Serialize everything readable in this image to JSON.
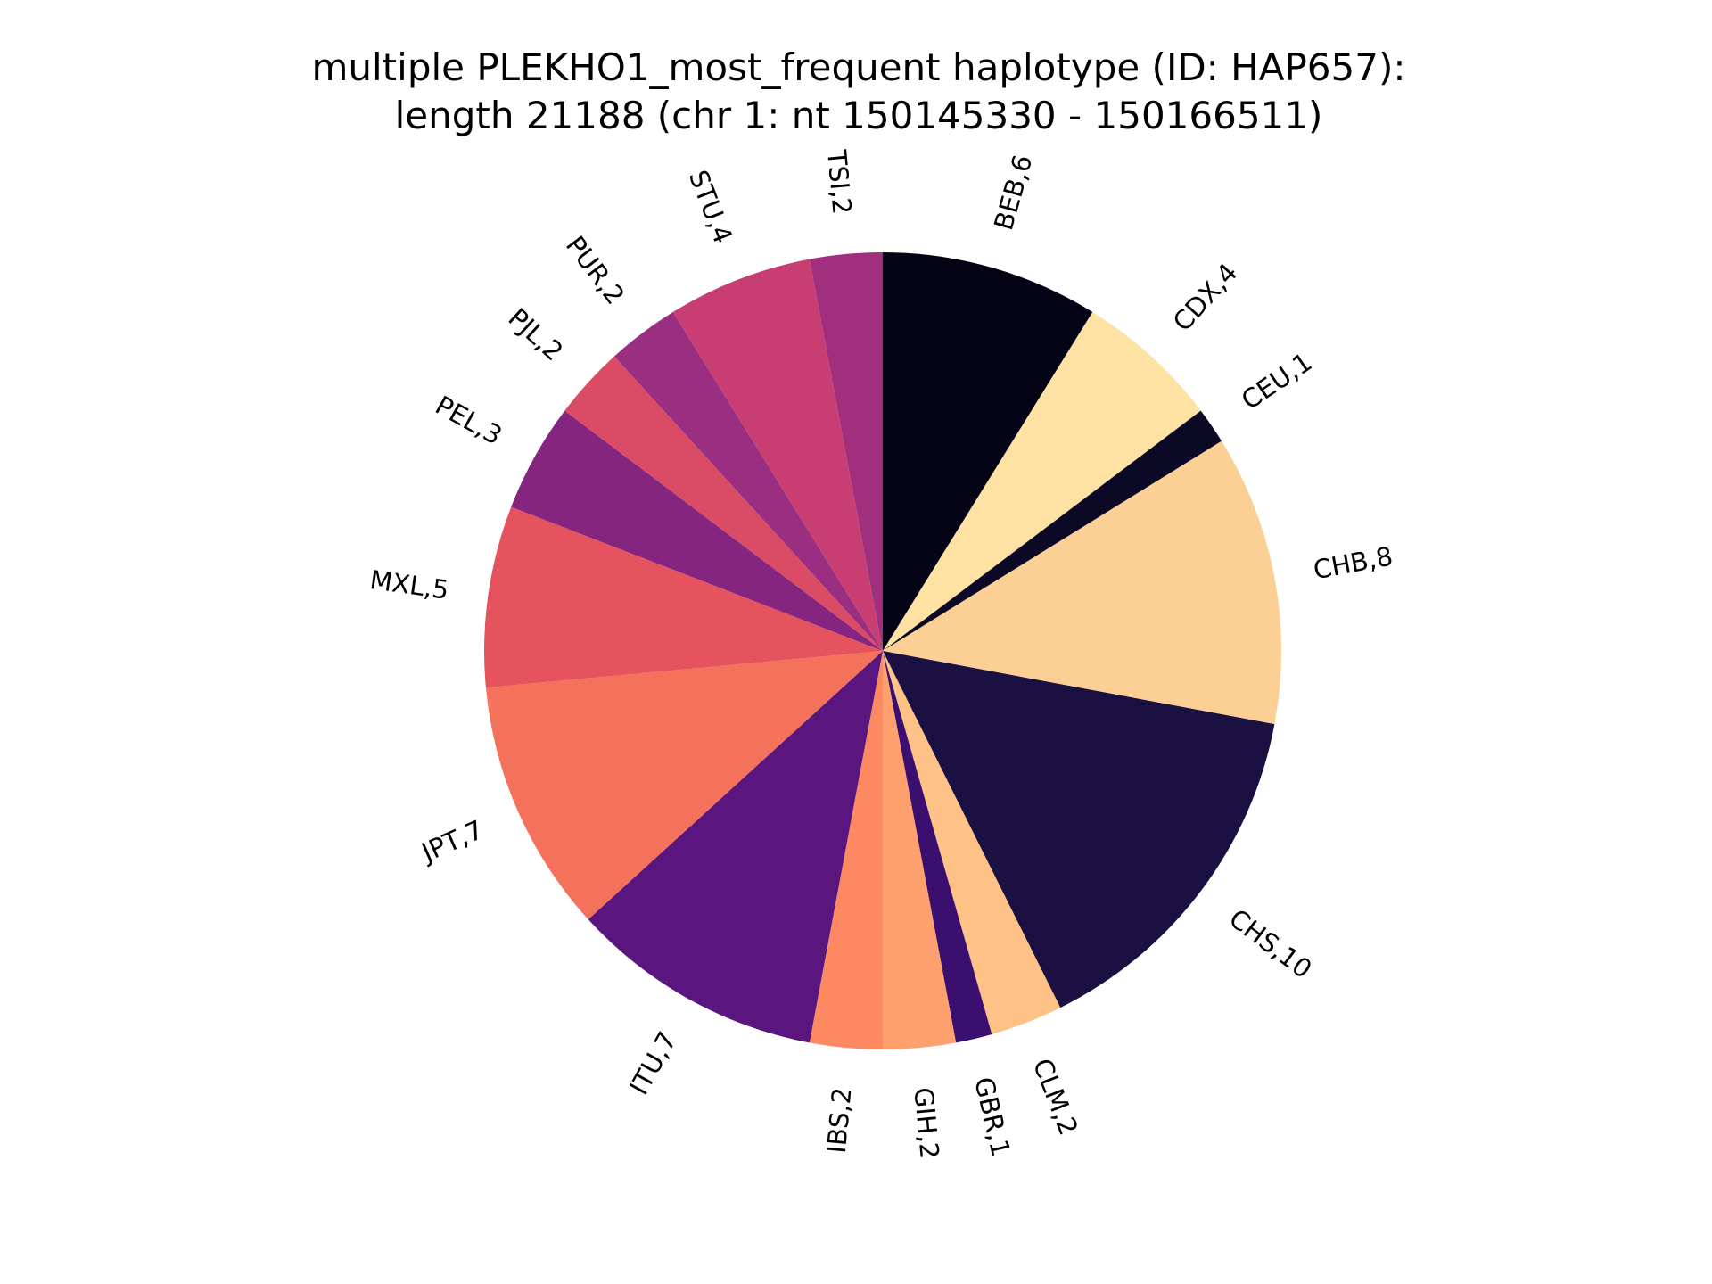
{
  "chart_data": {
    "type": "pie",
    "title": "multiple PLEKHO1_most_frequent haplotype (ID: HAP657):",
    "subtitle": "length 21188 (chr 1: nt 150145330 - 150166511)",
    "slices": [
      {
        "label": "BEB",
        "value": 6,
        "color": "#050416"
      },
      {
        "label": "CDX",
        "value": 4,
        "color": "#fde2a3"
      },
      {
        "label": "CEU",
        "value": 1,
        "color": "#0c0926"
      },
      {
        "label": "CHB",
        "value": 8,
        "color": "#fcd095"
      },
      {
        "label": "CHS",
        "value": 10,
        "color": "#1a1042"
      },
      {
        "label": "CLM",
        "value": 2,
        "color": "#fec287"
      },
      {
        "label": "GBR",
        "value": 1,
        "color": "#3b0f70"
      },
      {
        "label": "GIH",
        "value": 2,
        "color": "#fea16e"
      },
      {
        "label": "IBS",
        "value": 2,
        "color": "#fc8961"
      },
      {
        "label": "ITU",
        "value": 7,
        "color": "#5a167e"
      },
      {
        "label": "JPT",
        "value": 7,
        "color": "#f4725c"
      },
      {
        "label": "MXL",
        "value": 5,
        "color": "#e4535e"
      },
      {
        "label": "PEL",
        "value": 3,
        "color": "#852580"
      },
      {
        "label": "PJL",
        "value": 2,
        "color": "#da4b66"
      },
      {
        "label": "PUR",
        "value": 2,
        "color": "#9a2e80"
      },
      {
        "label": "STU",
        "value": 4,
        "color": "#c83e73"
      },
      {
        "label": "TSI",
        "value": 2,
        "color": "#a0307e"
      }
    ],
    "start_angle_deg": 90,
    "direction": "clockwise",
    "label_format": "{label},{value}"
  }
}
